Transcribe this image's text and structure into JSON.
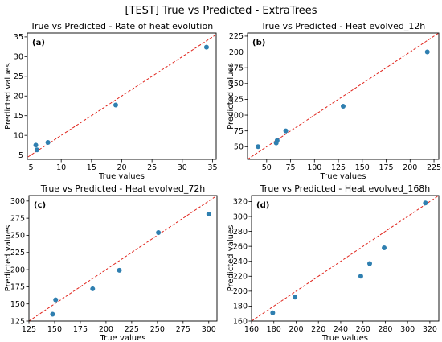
{
  "figure_title": "[TEST] True vs Predicted - ExtraTrees",
  "colors": {
    "points": "#2f7fb0",
    "identity_line": "#e0241c",
    "axes": "#000000"
  },
  "chart_data": [
    {
      "type": "scatter",
      "panel_label": "(a)",
      "title": "True vs Predicted - Rate of heat evolution",
      "xlabel": "True values",
      "ylabel": "Predicted values",
      "xlim": [
        4.4,
        35.6
      ],
      "ylim": [
        3.9,
        36.0
      ],
      "xticks": [
        5,
        10,
        15,
        20,
        25,
        30,
        35
      ],
      "yticks": [
        5,
        10,
        15,
        20,
        25,
        30,
        35
      ],
      "identity_line": true,
      "x": [
        5.8,
        6.0,
        7.8,
        19.0,
        34.0
      ],
      "y": [
        7.5,
        6.3,
        8.2,
        17.7,
        32.4
      ]
    },
    {
      "type": "scatter",
      "panel_label": "(b)",
      "title": "True vs Predicted - Heat evolved_12h",
      "xlabel": "True values",
      "ylabel": "Predicted values",
      "xlim": [
        30,
        230
      ],
      "ylim": [
        30,
        230
      ],
      "xticks": [
        50,
        75,
        100,
        125,
        150,
        175,
        200,
        225
      ],
      "yticks": [
        50,
        75,
        100,
        125,
        150,
        175,
        200,
        225
      ],
      "identity_line": true,
      "x": [
        41,
        60,
        61,
        70,
        130,
        218
      ],
      "y": [
        50,
        56,
        60,
        75,
        114,
        200
      ]
    },
    {
      "type": "scatter",
      "panel_label": "(c)",
      "title": "True vs Predicted - Heat evolved_72h",
      "xlabel": "True values",
      "ylabel": "Predicted values",
      "xlim": [
        125,
        308
      ],
      "ylim": [
        125,
        308
      ],
      "xticks": [
        125,
        150,
        175,
        200,
        225,
        250,
        275,
        300
      ],
      "yticks": [
        125,
        150,
        175,
        200,
        225,
        250,
        275,
        300
      ],
      "identity_line": true,
      "x": [
        148,
        151,
        187,
        213,
        251,
        300
      ],
      "y": [
        135,
        156,
        172,
        199,
        254,
        281
      ]
    },
    {
      "type": "scatter",
      "panel_label": "(d)",
      "title": "True vs Predicted - Heat evolved_168h",
      "xlabel": "True values",
      "ylabel": "Predicted values",
      "xlim": [
        160,
        328
      ],
      "ylim": [
        160,
        328
      ],
      "xticks": [
        160,
        180,
        200,
        220,
        240,
        260,
        280,
        300,
        320
      ],
      "yticks": [
        160,
        180,
        200,
        220,
        240,
        260,
        280,
        300,
        320
      ],
      "identity_line": true,
      "x": [
        179,
        199,
        258,
        266,
        279,
        316
      ],
      "y": [
        171,
        192,
        220,
        237,
        258,
        318
      ]
    }
  ]
}
